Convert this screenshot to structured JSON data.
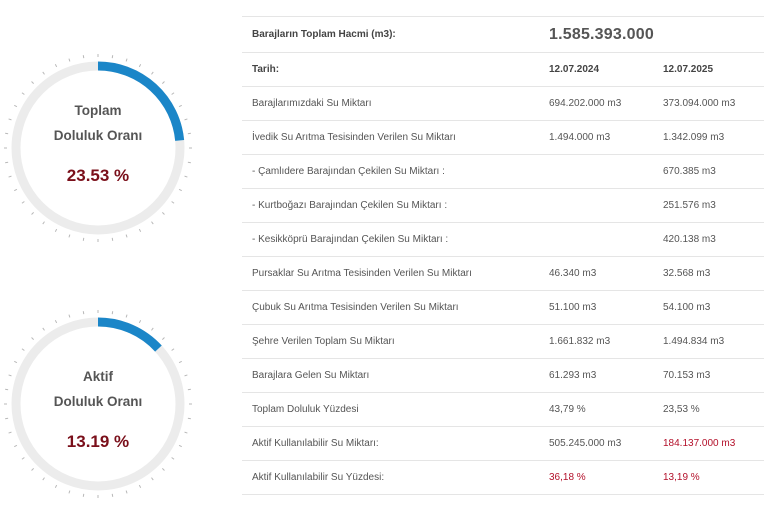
{
  "colors": {
    "arc": "#1b86c8",
    "track": "#ececec",
    "ticks": "#b8b8b8",
    "percent": "#7a0f1a",
    "alert": "#b3102a"
  },
  "gauges": [
    {
      "title_line1": "Toplam",
      "title_line2": "Doluluk Oranı",
      "value_text": "23.53 %",
      "percent": 23.53
    },
    {
      "title_line1": "Aktif",
      "title_line2": "Doluluk Oranı",
      "value_text": "13.19 %",
      "percent": 13.19
    }
  ],
  "table": {
    "rows": [
      {
        "label": "Barajların Toplam Hacmi (m3):",
        "v1": "1.585.393.000",
        "v2": ""
      },
      {
        "label": "Tarih:",
        "v1": "12.07.2024",
        "v2": "12.07.2025"
      },
      {
        "label": "Barajlarımızdaki Su Miktarı",
        "v1": "694.202.000 m3",
        "v2": "373.094.000 m3"
      },
      {
        "label": "İvedik Su Arıtma Tesisinden Verilen Su Miktarı",
        "v1": "1.494.000 m3",
        "v2": "1.342.099 m3"
      },
      {
        "label": "- Çamlıdere Barajından Çekilen Su Miktarı :",
        "v1": "",
        "v2": "670.385 m3"
      },
      {
        "label": "- Kurtboğazı Barajından Çekilen Su Miktarı :",
        "v1": "",
        "v2": "251.576 m3"
      },
      {
        "label": "- Kesikköprü Barajından Çekilen Su Miktarı :",
        "v1": "",
        "v2": "420.138 m3"
      },
      {
        "label": "Pursaklar Su Arıtma Tesisinden Verilen Su Miktarı",
        "v1": "46.340 m3",
        "v2": "32.568 m3"
      },
      {
        "label": "Çubuk Su Arıtma Tesisinden Verilen Su Miktarı",
        "v1": "51.100 m3",
        "v2": "54.100 m3"
      },
      {
        "label": "Şehre Verilen Toplam Su Miktarı",
        "v1": "1.661.832 m3",
        "v2": "1.494.834 m3"
      },
      {
        "label": "Barajlara Gelen Su Miktarı",
        "v1": "61.293 m3",
        "v2": "70.153 m3"
      },
      {
        "label": "Toplam Doluluk Yüzdesi",
        "v1": "43,79 %",
        "v2": "23,53 %"
      },
      {
        "label": "Aktif Kullanılabilir Su Miktarı:",
        "v1": "505.245.000 m3",
        "v2": "184.137.000 m3"
      },
      {
        "label": "Aktif Kullanılabilir Su Yüzdesi:",
        "v1": "36,18 %",
        "v2": "13,19 %"
      }
    ]
  }
}
